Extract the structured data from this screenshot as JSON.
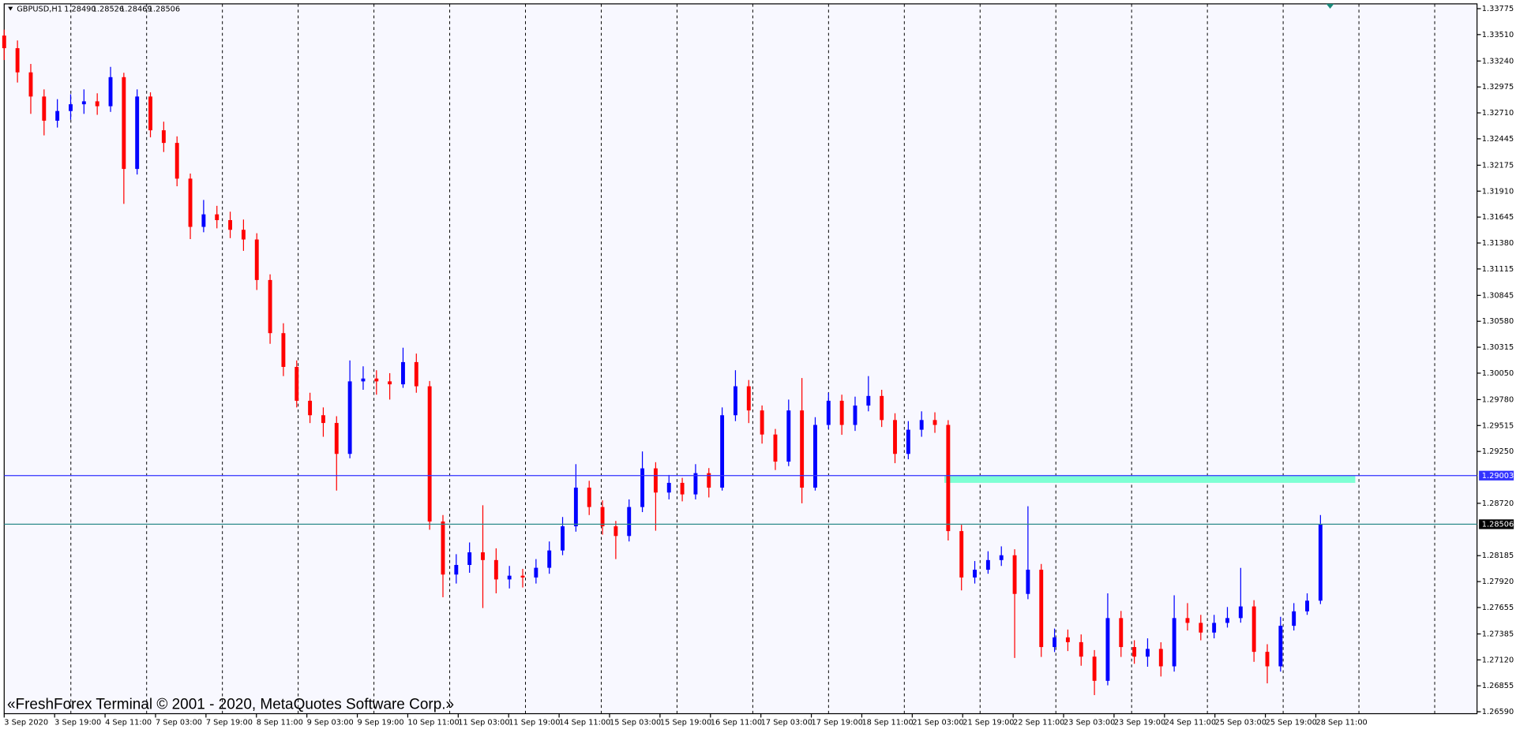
{
  "chart_data": {
    "type": "candlestick",
    "symbol": "GBPUSD,H1",
    "header_ohlc": [
      "1.28490",
      "1.28526",
      "1.28469",
      "1.28506"
    ],
    "copyright": "«FreshForex Terminal © 2001 - 2020, MetaQuotes Software Corp.»",
    "up_color": "#0000ff",
    "down_color": "#ff0000",
    "ylim": [
      1.2657,
      1.33824
    ],
    "yticks": [
      1.33775,
      {
        "value": 1.3351,
        "label": "1.33510"
      },
      {
        "value": 1.3324,
        "label": "1.33240"
      },
      1.32975,
      {
        "value": 1.3271,
        "label": "1.32710"
      },
      1.32445,
      1.32175,
      {
        "value": 1.3191,
        "label": "1.31910"
      },
      1.31645,
      {
        "value": 1.3138,
        "label": "1.31380"
      },
      1.31115,
      1.30845,
      {
        "value": 1.3058,
        "label": "1.30580"
      },
      1.30315,
      {
        "value": 1.3005,
        "label": "1.30050"
      },
      {
        "value": 1.2978,
        "label": "1.29780"
      },
      1.29515,
      {
        "value": 1.2925,
        "label": "1.29250"
      },
      {
        "value": 1.2872,
        "label": "1.28720"
      },
      1.28185,
      {
        "value": 1.2792,
        "label": "1.27920"
      },
      1.27655,
      1.27385,
      {
        "value": 1.2712,
        "label": "1.27120"
      },
      1.26855,
      {
        "value": 1.2659,
        "label": "1.26590"
      }
    ],
    "categories": [
      "3 Sep 2020",
      "3 Sep 19:00",
      "4 Sep 11:00",
      "7 Sep 03:00",
      "7 Sep 19:00",
      "8 Sep 11:00",
      "9 Sep 03:00",
      "9 Sep 19:00",
      "10 Sep 11:00",
      "11 Sep 03:00",
      "11 Sep 19:00",
      "14 Sep 11:00",
      "15 Sep 03:00",
      "15 Sep 19:00",
      "16 Sep 11:00",
      "17 Sep 03:00",
      "17 Sep 19:00",
      "18 Sep 11:00",
      "21 Sep 03:00",
      "21 Sep 19:00",
      "22 Sep 11:00",
      "23 Sep 03:00",
      "23 Sep 19:00",
      "24 Sep 11:00",
      "25 Sep 03:00",
      "25 Sep 19:00",
      "28 Sep 11:00"
    ],
    "hlines": [
      {
        "value": 1.29003,
        "color": "#3232ff",
        "badge": "#3232ff"
      },
      {
        "value": 1.28506,
        "color": "#2e8b8b",
        "badge": "#000000"
      }
    ],
    "zone": {
      "high": 1.29003,
      "low": 1.28929,
      "color": "#7fffd4"
    },
    "open": [
      1.335,
      1.33371,
      1.33124,
      1.32877,
      1.3263,
      1.32729,
      1.32798,
      1.32828,
      1.32778,
      1.33075,
      1.32137,
      1.32877,
      1.32532,
      1.32403,
      1.32038,
      1.31545,
      1.31673,
      1.31614,
      1.31515,
      1.31416,
      1.31002,
      1.30459,
      1.30114,
      1.29768,
      1.2962,
      1.29541,
      1.29225,
      1.29966,
      1.29995,
      1.29966,
      1.29936,
      1.30163,
      1.29916,
      1.28534,
      1.27992,
      1.2809,
      1.28219,
      1.2814,
      1.27942,
      1.2798,
      1.27962,
      1.28061,
      1.28238,
      1.28485,
      1.2888,
      1.28682,
      1.28485,
      1.28386,
      1.28682,
      1.29077,
      1.2883,
      1.28929,
      1.28811,
      1.29028,
      1.2888,
      1.2962,
      1.29916,
      1.29669,
      1.29423,
      1.29146,
      1.29669,
      1.2888,
      1.29521,
      1.29768,
      1.29521,
      1.29719,
      1.29817,
      1.29571,
      1.29225,
      1.29472,
      1.29571,
      1.29521,
      1.28436,
      1.27962,
      1.28041,
      1.2814,
      1.28189,
      1.27794,
      1.28041,
      1.27251,
      1.2735,
      1.27301,
      1.27153,
      1.26906,
      1.27547,
      1.27251,
      1.27153,
      1.27232,
      1.27054,
      1.27547,
      1.27498,
      1.27399,
      1.27498,
      1.27547,
      1.27666,
      1.27202,
      1.27054,
      1.27468,
      1.27616,
      1.27725
    ],
    "high": [
      1.3356,
      1.3345,
      1.3321,
      1.3295,
      1.3285,
      1.329,
      1.3295,
      1.3291,
      1.3318,
      1.3312,
      1.3295,
      1.3292,
      1.3262,
      1.3247,
      1.3209,
      1.3182,
      1.3176,
      1.317,
      1.3162,
      1.3148,
      1.3106,
      1.3056,
      1.3018,
      1.2985,
      1.297,
      1.2961,
      1.3018,
      1.3012,
      1.3008,
      1.3005,
      1.3031,
      1.3025,
      1.2997,
      1.286,
      1.282,
      1.2832,
      1.287,
      1.2826,
      1.2808,
      1.2805,
      1.2815,
      1.2833,
      1.2858,
      1.2912,
      1.2895,
      1.2875,
      1.2854,
      1.2876,
      1.2925,
      1.2914,
      1.2901,
      1.2898,
      1.2912,
      1.2908,
      1.297,
      1.3008,
      1.2998,
      1.2972,
      1.2948,
      1.2978,
      1.3,
      1.296,
      1.2985,
      1.2983,
      1.2981,
      1.3002,
      1.2988,
      1.2964,
      1.2956,
      1.2966,
      1.2965,
      1.2957,
      1.285,
      1.2813,
      1.2823,
      1.2828,
      1.2825,
      1.2869,
      1.281,
      1.2744,
      1.2743,
      1.2738,
      1.2722,
      1.278,
      1.2762,
      1.2732,
      1.2734,
      1.273,
      1.2778,
      1.277,
      1.2758,
      1.2758,
      1.2766,
      1.2806,
      1.2773,
      1.2728,
      1.2756,
      1.277,
      1.278,
      1.286
    ],
    "low": [
      1.3325,
      1.3302,
      1.327,
      1.3248,
      1.3256,
      1.3264,
      1.327,
      1.3269,
      1.3272,
      1.3178,
      1.3208,
      1.3246,
      1.3231,
      1.3196,
      1.3142,
      1.3149,
      1.3153,
      1.3143,
      1.313,
      1.309,
      1.3035,
      1.3002,
      1.297,
      1.2954,
      1.294,
      1.2885,
      1.2918,
      1.2988,
      1.2983,
      1.2978,
      1.299,
      1.2985,
      1.2845,
      1.2776,
      1.279,
      1.2801,
      1.2765,
      1.278,
      1.2785,
      1.2786,
      1.279,
      1.28,
      1.2819,
      1.2843,
      1.286,
      1.284,
      1.2815,
      1.2833,
      1.2863,
      1.2844,
      1.2876,
      1.2874,
      1.2876,
      1.2878,
      1.2885,
      1.2956,
      1.2954,
      1.2933,
      1.2906,
      1.291,
      1.2872,
      1.2885,
      1.2948,
      1.2942,
      1.2946,
      1.2966,
      1.295,
      1.2913,
      1.2917,
      1.294,
      1.2944,
      1.2834,
      1.2783,
      1.279,
      1.28,
      1.2808,
      1.2714,
      1.2774,
      1.2715,
      1.272,
      1.2721,
      1.2706,
      1.2676,
      1.2686,
      1.2715,
      1.2708,
      1.2705,
      1.2695,
      1.27,
      1.2742,
      1.2732,
      1.2734,
      1.2745,
      1.275,
      1.271,
      1.2688,
      1.27,
      1.2742,
      1.2758,
      1.2769
    ],
    "close": [
      1.33371,
      1.33124,
      1.32877,
      1.3263,
      1.32729,
      1.32798,
      1.32828,
      1.32778,
      1.33075,
      1.32137,
      1.32877,
      1.32532,
      1.32403,
      1.32038,
      1.31545,
      1.31673,
      1.31614,
      1.31515,
      1.31416,
      1.31002,
      1.30459,
      1.30114,
      1.29768,
      1.2962,
      1.29541,
      1.29225,
      1.29966,
      1.29995,
      1.29966,
      1.29936,
      1.30163,
      1.29916,
      1.28534,
      1.27992,
      1.2809,
      1.28219,
      1.2814,
      1.27942,
      1.2798,
      1.27962,
      1.28061,
      1.28238,
      1.28485,
      1.2888,
      1.28682,
      1.28485,
      1.28386,
      1.28682,
      1.29077,
      1.2883,
      1.28929,
      1.28811,
      1.29028,
      1.2888,
      1.2962,
      1.29916,
      1.29669,
      1.29423,
      1.29146,
      1.29669,
      1.2888,
      1.29521,
      1.29768,
      1.29521,
      1.29719,
      1.29817,
      1.29571,
      1.29225,
      1.29472,
      1.29571,
      1.29521,
      1.28436,
      1.27962,
      1.28041,
      1.2814,
      1.28189,
      1.27794,
      1.28041,
      1.27251,
      1.2735,
      1.27301,
      1.27153,
      1.26906,
      1.27547,
      1.27251,
      1.27153,
      1.27232,
      1.27054,
      1.27547,
      1.27498,
      1.27399,
      1.27498,
      1.27547,
      1.27666,
      1.27202,
      1.27054,
      1.27468,
      1.27616,
      1.27725,
      1.28506
    ]
  }
}
